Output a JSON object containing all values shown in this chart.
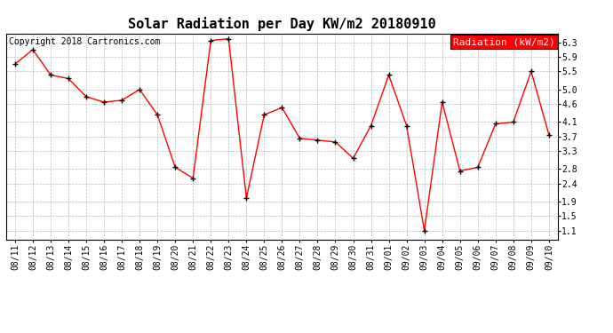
{
  "title": "Solar Radiation per Day KW/m2 20180910",
  "copyright_text": "Copyright 2018 Cartronics.com",
  "legend_label": "Radiation (kW/m2)",
  "x_labels": [
    "08/11",
    "08/12",
    "08/13",
    "08/14",
    "08/15",
    "08/16",
    "08/17",
    "08/18",
    "08/19",
    "08/20",
    "08/21",
    "08/22",
    "08/23",
    "08/24",
    "08/25",
    "08/26",
    "08/27",
    "08/28",
    "08/29",
    "08/30",
    "08/31",
    "09/01",
    "09/02",
    "09/03",
    "09/04",
    "09/05",
    "09/06",
    "09/07",
    "09/08",
    "09/09",
    "09/10"
  ],
  "y_values": [
    5.7,
    6.1,
    5.4,
    5.3,
    4.8,
    4.65,
    4.7,
    5.0,
    4.3,
    2.85,
    2.55,
    6.35,
    6.4,
    2.0,
    4.3,
    4.5,
    3.65,
    3.6,
    3.55,
    3.1,
    4.0,
    5.4,
    4.0,
    1.1,
    4.65,
    2.75,
    2.85,
    4.05,
    4.1,
    5.5,
    3.75
  ],
  "y_ticks": [
    1.1,
    1.5,
    1.9,
    2.4,
    2.8,
    3.3,
    3.7,
    4.1,
    4.6,
    5.0,
    5.5,
    5.9,
    6.3
  ],
  "ylim": [
    0.85,
    6.55
  ],
  "line_color": "red",
  "marker": "+",
  "marker_color": "black",
  "bg_color": "#ffffff",
  "plot_bg_color": "#ffffff",
  "grid_color": "#bbbbbb",
  "legend_bg": "red",
  "legend_text_color": "white",
  "title_fontsize": 11,
  "copyright_fontsize": 7,
  "tick_fontsize": 7,
  "legend_fontsize": 8
}
